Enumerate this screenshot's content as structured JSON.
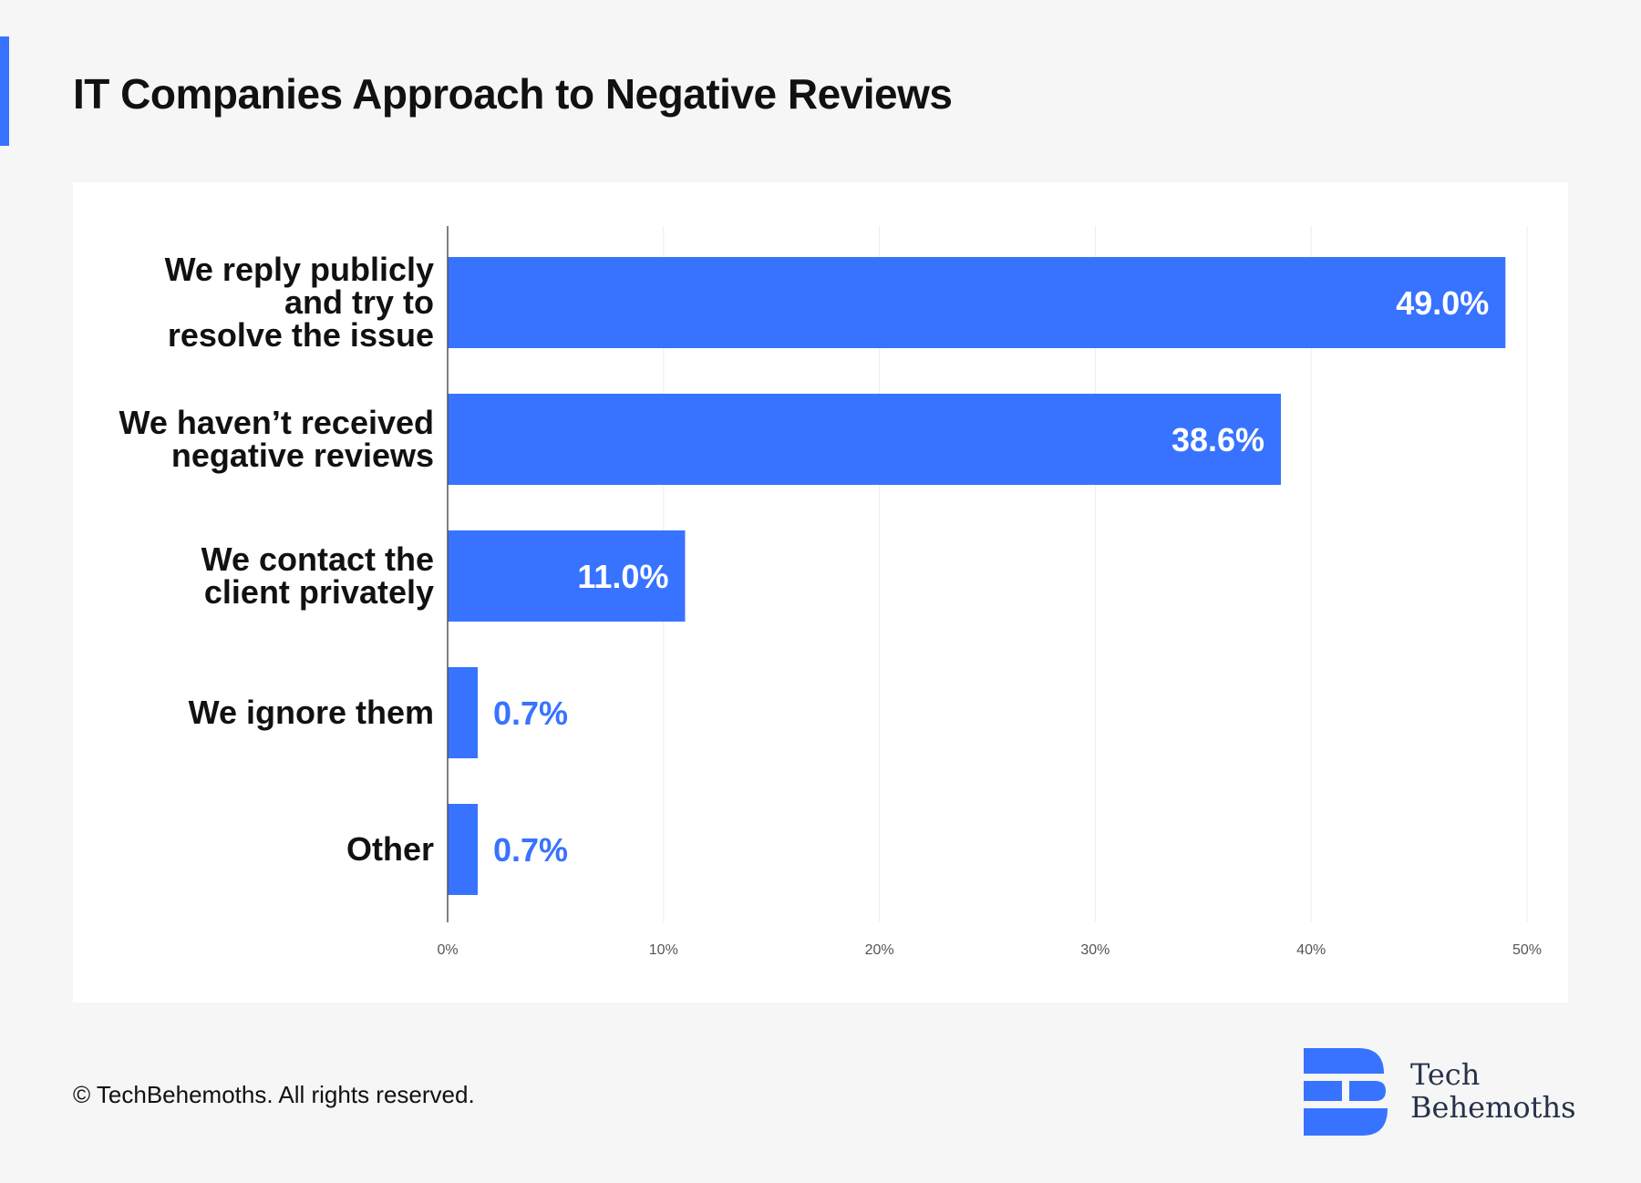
{
  "title": "IT Companies Approach to Negative Reviews",
  "copyright": "© TechBehemoths. All rights reserved.",
  "brand": {
    "line1": "Tech",
    "line2": "Behemoths"
  },
  "colors": {
    "accent": "#3873ff",
    "text": "#111111",
    "background": "#f6f6f6",
    "panel": "#ffffff"
  },
  "chart_data": {
    "type": "bar",
    "orientation": "horizontal",
    "title": "IT Companies Approach to Negative Reviews",
    "categories": [
      [
        "We reply publicly",
        "and try to",
        "resolve the issue"
      ],
      [
        "We haven’t received",
        "negative reviews"
      ],
      [
        "We contact the",
        "client privately"
      ],
      [
        "We ignore them"
      ],
      [
        "Other"
      ]
    ],
    "values": [
      49.0,
      38.6,
      11.0,
      0.7,
      0.7
    ],
    "value_labels": [
      "49.0%",
      "38.6%",
      "11.0%",
      "0.7%",
      "0.7%"
    ],
    "xlim": [
      0,
      50
    ],
    "xticks": [
      0,
      10,
      20,
      30,
      40,
      50
    ],
    "xtick_labels": [
      "0%",
      "10%",
      "20%",
      "30%",
      "40%",
      "50%"
    ],
    "grid": true,
    "xlabel": "",
    "ylabel": ""
  }
}
